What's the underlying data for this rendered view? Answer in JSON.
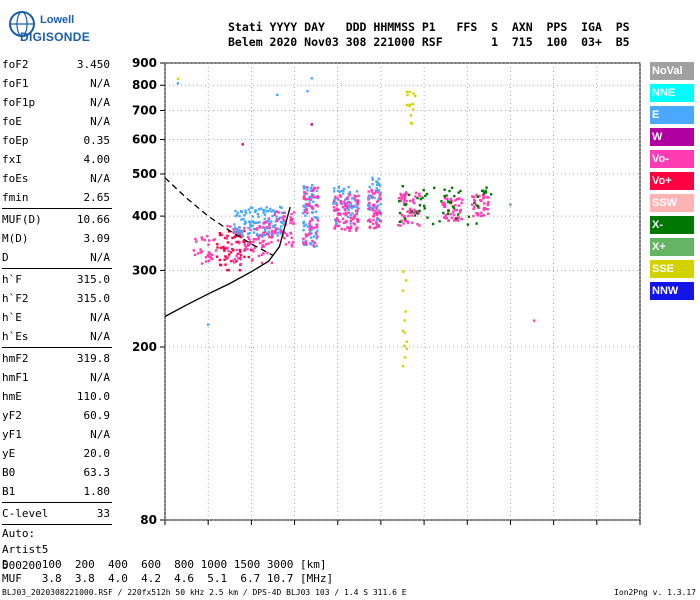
{
  "logo": {
    "line1": "Lowell",
    "line2": "DIGISONDE"
  },
  "header": {
    "line1": "Stati YYYY DAY   DDD HHMMSS P1   FFS  S  AXN  PPS  IGA  PS",
    "line2": "Belem 2020 Nov03 308 221000 RSF       1  715  100  03+  B5"
  },
  "params": {
    "g1": [
      {
        "label": "foF2",
        "value": "3.450"
      },
      {
        "label": "foF1",
        "value": "N/A"
      },
      {
        "label": "foF1p",
        "value": "N/A"
      },
      {
        "label": "foE",
        "value": "N/A"
      },
      {
        "label": "foEp",
        "value": "0.35"
      },
      {
        "label": "fxI",
        "value": "4.00"
      },
      {
        "label": "foEs",
        "value": "N/A"
      },
      {
        "label": "fmin",
        "value": "2.65"
      }
    ],
    "g2": [
      {
        "label": "MUF(D)",
        "value": "10.66"
      },
      {
        "label": "M(D)",
        "value": "3.09"
      },
      {
        "label": "D",
        "value": "N/A"
      }
    ],
    "g3": [
      {
        "label": "h`F",
        "value": "315.0"
      },
      {
        "label": "h`F2",
        "value": "315.0"
      },
      {
        "label": "h`E",
        "value": "N/A"
      },
      {
        "label": "h`Es",
        "value": "N/A"
      }
    ],
    "g4": [
      {
        "label": "hmF2",
        "value": "319.8"
      },
      {
        "label": "hmF1",
        "value": "N/A"
      },
      {
        "label": "hmE",
        "value": "110.0"
      },
      {
        "label": "yF2",
        "value": "60.9"
      },
      {
        "label": "yF1",
        "value": "N/A"
      },
      {
        "label": "yE",
        "value": "20.0"
      },
      {
        "label": "B0",
        "value": "63.3"
      },
      {
        "label": "B1",
        "value": "1.80"
      }
    ],
    "g5": [
      {
        "label": "C-level",
        "value": "33"
      }
    ],
    "auto": [
      "Auto:",
      "Artist5",
      "500200"
    ]
  },
  "legend": [
    {
      "label": "NoVal",
      "color": "#a0a0a0"
    },
    {
      "label": "NNE",
      "color": "#00ffff"
    },
    {
      "label": "E",
      "color": "#4aa8ff"
    },
    {
      "label": "W",
      "color": "#b000a0"
    },
    {
      "label": "Vo-",
      "color": "#ff3cb4"
    },
    {
      "label": "Vo+",
      "color": "#ff0040"
    },
    {
      "label": "SSW",
      "color": "#ffb4b4"
    },
    {
      "label": "X-",
      "color": "#007800"
    },
    {
      "label": "X+",
      "color": "#64b464"
    },
    {
      "label": "SSE",
      "color": "#d2d200"
    },
    {
      "label": "NNW",
      "color": "#1414e6"
    }
  ],
  "footer": {
    "row_d": "D     100  200  400  600  800 1000 1500 3000 [km]",
    "row_muf": "MUF   3.8  3.8  4.0  4.2  4.6  5.1  6.7 10.7 [MHz]",
    "file": "BLJ03_2020308221000.RSF / 220fx512h 50 kHz 2.5 km / DPS-4D BLJ03 103 / 1.4 S 311.6 E",
    "version": "Ion2Png v. 1.3.17"
  },
  "chart_data": {
    "type": "scatter",
    "title": "",
    "xlabel": "",
    "ylabel": "",
    "xlim": [
      1,
      12
    ],
    "ylim": [
      80,
      900
    ],
    "yscale": "log",
    "x_ticks": [
      "1",
      "2",
      "3",
      "4",
      "5",
      "6",
      "7",
      "8",
      "9",
      "10",
      "11",
      "12"
    ],
    "y_ticks": [
      "80",
      "200",
      "300",
      "400",
      "500",
      "600",
      "700",
      "800",
      "900"
    ],
    "y_tick_values": [
      80,
      200,
      300,
      400,
      500,
      600,
      700,
      800,
      900
    ],
    "grid": "dotted",
    "clusters": [
      {
        "x": [
          1.6,
          2.2
        ],
        "y": [
          310,
          360
        ],
        "color": "#ff3cb4",
        "n": 30
      },
      {
        "x": [
          2.2,
          3.0
        ],
        "y": [
          300,
          370
        ],
        "color": "#ff0040",
        "n": 60
      },
      {
        "x": [
          2.4,
          3.5
        ],
        "y": [
          310,
          380
        ],
        "color": "#ff3cb4",
        "n": 70
      },
      {
        "x": [
          2.6,
          3.8
        ],
        "y": [
          360,
          420
        ],
        "color": "#4aa8ff",
        "n": 120
      },
      {
        "x": [
          3.2,
          4.0
        ],
        "y": [
          340,
          410
        ],
        "color": "#ff3cb4",
        "n": 60
      },
      {
        "x": [
          4.2,
          4.55
        ],
        "y": [
          340,
          480
        ],
        "color": "#4aa8ff",
        "n": 70
      },
      {
        "x": [
          4.2,
          4.55
        ],
        "y": [
          340,
          470
        ],
        "color": "#ff3cb4",
        "n": 60
      },
      {
        "x": [
          4.9,
          5.5
        ],
        "y": [
          380,
          470
        ],
        "color": "#4aa8ff",
        "n": 60
      },
      {
        "x": [
          4.9,
          5.5
        ],
        "y": [
          370,
          450
        ],
        "color": "#ff3cb4",
        "n": 90
      },
      {
        "x": [
          5.7,
          6.0
        ],
        "y": [
          375,
          460
        ],
        "color": "#ff3cb4",
        "n": 70
      },
      {
        "x": [
          5.7,
          6.0
        ],
        "y": [
          390,
          500
        ],
        "color": "#4aa8ff",
        "n": 30
      },
      {
        "x": [
          6.4,
          6.9
        ],
        "y": [
          380,
          460
        ],
        "color": "#ff3cb4",
        "n": 60
      },
      {
        "x": [
          7.4,
          7.9
        ],
        "y": [
          390,
          440
        ],
        "color": "#ff3cb4",
        "n": 50
      },
      {
        "x": [
          8.1,
          8.5
        ],
        "y": [
          400,
          450
        ],
        "color": "#ff3cb4",
        "n": 40
      },
      {
        "x": [
          6.4,
          8.6
        ],
        "y": [
          380,
          470
        ],
        "color": "#007800",
        "n": 60
      },
      {
        "x": [
          6.6,
          6.8
        ],
        "y": [
          650,
          790
        ],
        "color": "#d2d200",
        "n": 14
      },
      {
        "x": [
          6.5,
          6.6
        ],
        "y": [
          160,
          330
        ],
        "color": "#d2d200",
        "n": 12
      }
    ],
    "outliers": [
      {
        "x": 1.3,
        "y": 828,
        "color": "#d2d200"
      },
      {
        "x": 1.3,
        "y": 808,
        "color": "#4aa8ff"
      },
      {
        "x": 2.0,
        "y": 225,
        "color": "#4aa8ff"
      },
      {
        "x": 2.8,
        "y": 585,
        "color": "#ff0040"
      },
      {
        "x": 3.6,
        "y": 760,
        "color": "#4aa8ff"
      },
      {
        "x": 4.3,
        "y": 775,
        "color": "#4aa8ff"
      },
      {
        "x": 4.4,
        "y": 830,
        "color": "#4aa8ff"
      },
      {
        "x": 4.4,
        "y": 650,
        "color": "#b000a0"
      },
      {
        "x": 9.55,
        "y": 230,
        "color": "#ff3cb4"
      },
      {
        "x": 9.0,
        "y": 425,
        "color": "#64b464"
      }
    ],
    "profile_solid": {
      "x": [
        1.0,
        1.5,
        2.0,
        2.5,
        3.0,
        3.4,
        3.65,
        3.9
      ],
      "y": [
        235,
        250,
        265,
        280,
        298,
        315,
        340,
        420
      ]
    },
    "profile_dashed": {
      "x": [
        1.0,
        1.5,
        2.0,
        2.5,
        3.0,
        3.5
      ],
      "y": [
        490,
        440,
        400,
        370,
        345,
        325
      ]
    }
  }
}
